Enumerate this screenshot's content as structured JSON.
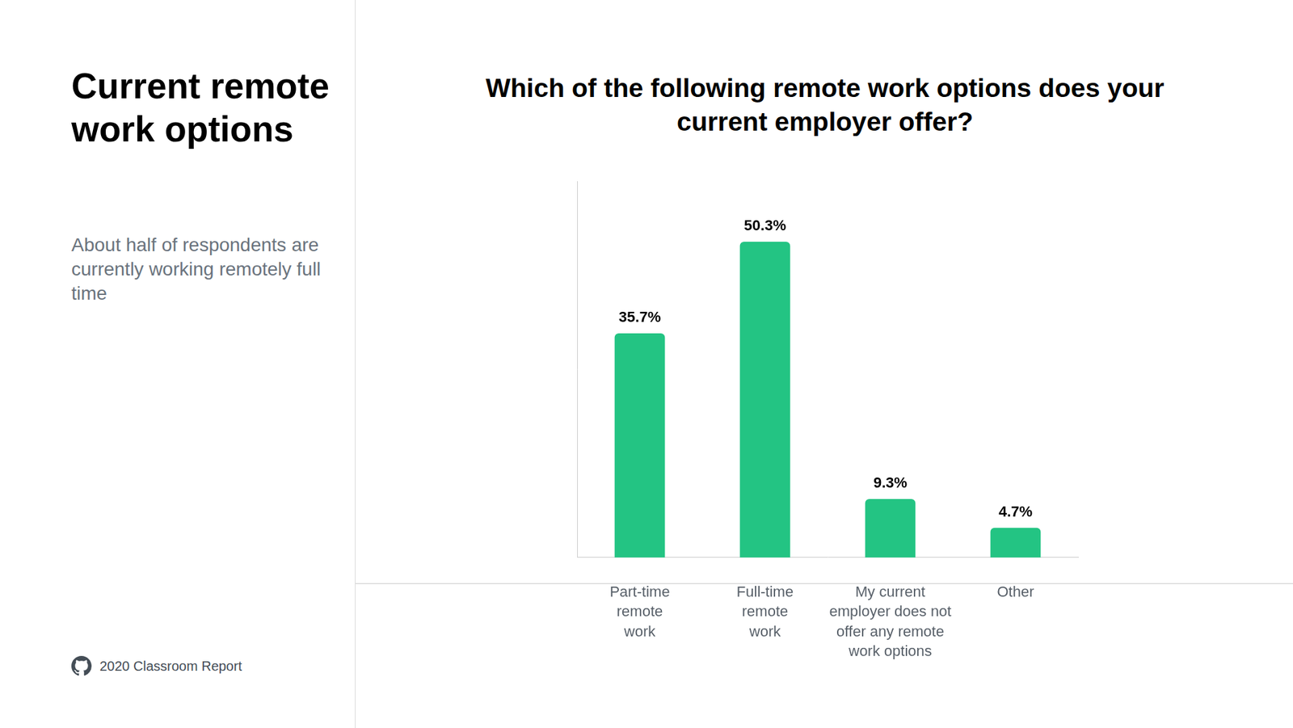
{
  "heading": "Current remote work options",
  "summary": "About half of respondents are currently working remotely full time",
  "source": "2020 Classroom Report",
  "chart_data": {
    "type": "bar",
    "title": "Which of the following remote work options does your current employer offer?",
    "categories": [
      [
        "Part-time",
        "remote",
        "work"
      ],
      [
        "Full-time",
        "remote",
        "work"
      ],
      [
        "My current",
        "employer does not",
        "offer any remote",
        "work options"
      ],
      [
        "Other"
      ]
    ],
    "values": [
      35.7,
      50.3,
      9.3,
      4.7
    ],
    "value_labels": [
      "35.7%",
      "50.3%",
      "9.3%",
      "4.7%"
    ],
    "color": "#23c483",
    "ylim": [
      0,
      60
    ],
    "grid": false,
    "data_labels": true,
    "tick_labels": "x"
  }
}
